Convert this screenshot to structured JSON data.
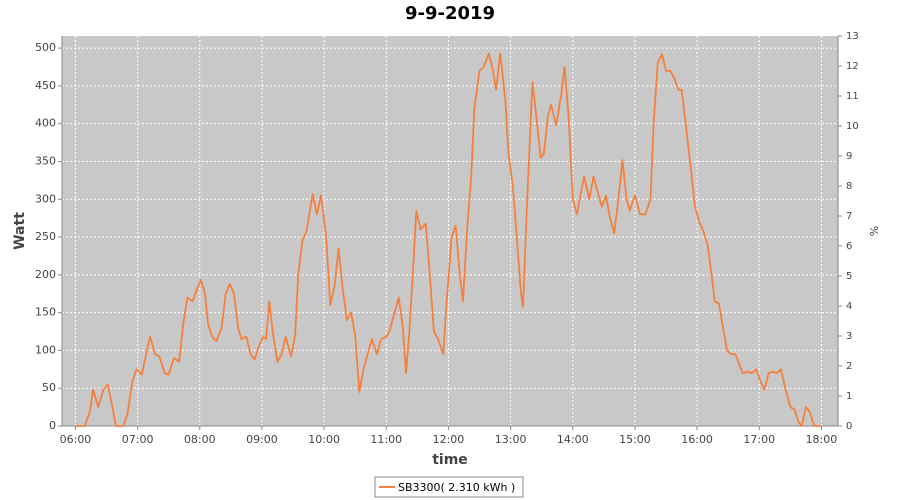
{
  "chart_data": {
    "type": "line",
    "title": "9-9-2019",
    "x_label": "time",
    "y_label": "Watt",
    "y2_label": "%",
    "x": [
      "06:00",
      "06:09",
      "06:14",
      "06:17",
      "06:22",
      "06:27",
      "06:31",
      "06:35",
      "06:39",
      "06:46",
      "06:50",
      "06:55",
      "06:59",
      "07:04",
      "07:09",
      "07:12",
      "07:17",
      "07:21",
      "07:26",
      "07:30",
      "07:35",
      "07:40",
      "07:44",
      "07:48",
      "07:53",
      "07:57",
      "08:01",
      "08:05",
      "08:08",
      "08:12",
      "08:16",
      "08:21",
      "08:25",
      "08:29",
      "08:33",
      "08:37",
      "08:40",
      "08:45",
      "08:49",
      "08:53",
      "08:57",
      "09:01",
      "09:04",
      "09:07",
      "09:11",
      "09:15",
      "09:19",
      "09:23",
      "09:28",
      "09:32",
      "09:35",
      "09:39",
      "09:43",
      "09:49",
      "09:53",
      "09:57",
      "10:02",
      "10:06",
      "10:10",
      "10:14",
      "10:18",
      "10:22",
      "10:26",
      "10:30",
      "10:34",
      "10:38",
      "10:42",
      "10:46",
      "10:51",
      "10:55",
      "11:00",
      "11:03",
      "11:08",
      "11:12",
      "11:16",
      "11:19",
      "11:22",
      "11:26",
      "11:29",
      "11:33",
      "11:38",
      "11:42",
      "11:46",
      "11:50",
      "11:55",
      "11:58",
      "12:03",
      "12:07",
      "12:11",
      "12:14",
      "12:18",
      "12:22",
      "12:25",
      "12:30",
      "12:34",
      "12:39",
      "12:43",
      "12:46",
      "12:50",
      "12:55",
      "12:58",
      "13:02",
      "13:06",
      "13:10",
      "13:12",
      "13:16",
      "13:21",
      "13:24",
      "13:29",
      "13:32",
      "13:36",
      "13:39",
      "13:44",
      "13:49",
      "13:52",
      "13:56",
      "14:00",
      "14:04",
      "14:08",
      "14:11",
      "14:16",
      "14:20",
      "14:24",
      "14:28",
      "14:32",
      "14:36",
      "14:40",
      "14:44",
      "14:48",
      "14:52",
      "14:55",
      "15:00",
      "15:05",
      "15:10",
      "15:15",
      "15:18",
      "15:22",
      "15:26",
      "15:30",
      "15:34",
      "15:38",
      "15:42",
      "15:45",
      "15:49",
      "15:54",
      "15:58",
      "16:02",
      "16:06",
      "16:10",
      "16:14",
      "16:17",
      "16:21",
      "16:25",
      "16:29",
      "16:33",
      "16:37",
      "16:41",
      "16:44",
      "16:49",
      "16:53",
      "16:57",
      "17:01",
      "17:05",
      "17:09",
      "17:13",
      "17:17",
      "17:21",
      "17:25",
      "17:30",
      "17:34",
      "17:38",
      "17:41",
      "17:45",
      "17:49",
      "17:53",
      "18:00"
    ],
    "series": [
      {
        "name": "SB3300( 2.310 kWh )",
        "color": "#f5803e",
        "values": [
          0,
          0,
          20,
          48,
          25,
          48,
          55,
          30,
          0,
          0,
          15,
          60,
          75,
          68,
          100,
          118,
          95,
          92,
          70,
          68,
          90,
          85,
          135,
          170,
          165,
          180,
          193,
          175,
          135,
          118,
          112,
          130,
          175,
          188,
          175,
          130,
          115,
          118,
          95,
          88,
          105,
          118,
          115,
          165,
          118,
          85,
          95,
          118,
          92,
          120,
          200,
          245,
          258,
          307,
          280,
          305,
          250,
          160,
          185,
          235,
          180,
          140,
          150,
          120,
          45,
          75,
          95,
          115,
          95,
          115,
          118,
          125,
          150,
          170,
          130,
          70,
          120,
          210,
          285,
          260,
          268,
          200,
          125,
          115,
          95,
          160,
          250,
          265,
          200,
          165,
          260,
          330,
          420,
          470,
          475,
          493,
          470,
          445,
          493,
          430,
          360,
          320,
          250,
          175,
          158,
          300,
          455,
          420,
          355,
          360,
          410,
          425,
          398,
          440,
          475,
          410,
          300,
          280,
          310,
          330,
          300,
          330,
          310,
          290,
          305,
          275,
          255,
          300,
          352,
          300,
          285,
          305,
          280,
          280,
          300,
          400,
          480,
          492,
          470,
          470,
          460,
          445,
          445,
          400,
          340,
          290,
          270,
          258,
          240,
          200,
          165,
          162,
          130,
          100,
          95,
          95,
          80,
          70,
          72,
          70,
          75,
          60,
          48,
          70,
          72,
          70,
          75,
          50,
          25,
          22,
          5,
          0,
          25,
          18,
          0,
          0
        ]
      }
    ],
    "xlim": [
      "05:47",
      "18:16"
    ],
    "xticks": [
      "06:00",
      "07:00",
      "08:00",
      "09:00",
      "10:00",
      "11:00",
      "12:00",
      "13:00",
      "14:00",
      "15:00",
      "16:00",
      "17:00",
      "18:00"
    ],
    "ylim": [
      0,
      516
    ],
    "yticks": [
      0,
      50,
      100,
      150,
      200,
      250,
      300,
      350,
      400,
      450,
      500
    ],
    "y2lim": [
      0,
      13
    ],
    "y2ticks": [
      0,
      1,
      2,
      3,
      4,
      5,
      6,
      7,
      8,
      9,
      10,
      11,
      12,
      13
    ],
    "grid": true,
    "background": "#c8c8c8",
    "legend": "bottom"
  }
}
